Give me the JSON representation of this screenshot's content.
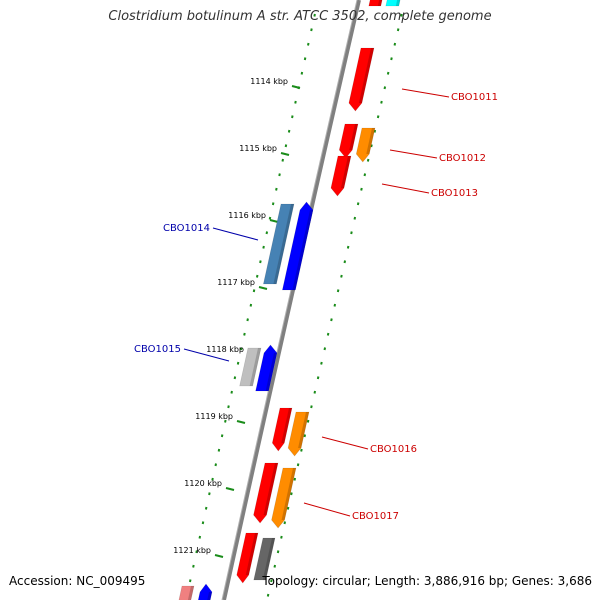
{
  "title": "Clostridium botulinum A str. ATCC 3502, complete genome",
  "accession": "Accession: NC_009495",
  "summary": "Topology: circular; Length: 3,886,916 bp; Genes: 3,686",
  "ticks": [
    "1114 kbp",
    "1115 kbp",
    "1116 kbp",
    "1117 kbp",
    "1118 kbp",
    "1119 kbp",
    "1120 kbp",
    "1121 kbp"
  ],
  "genes": [
    {
      "label": "CBO1011",
      "strand": "forward",
      "color": "#cc0000"
    },
    {
      "label": "CBO1012",
      "strand": "forward",
      "color": "#cc0000"
    },
    {
      "label": "CBO1013",
      "strand": "forward",
      "color": "#cc0000"
    },
    {
      "label": "CBO1014",
      "strand": "reverse",
      "color": "#0000aa"
    },
    {
      "label": "CBO1015",
      "strand": "reverse",
      "color": "#0000aa"
    },
    {
      "label": "CBO1016",
      "strand": "forward",
      "color": "#cc0000"
    },
    {
      "label": "CBO1017",
      "strand": "forward",
      "color": "#cc0000"
    }
  ],
  "colors": {
    "backbone": "#808080",
    "dots": "#1a8c1a",
    "cds_forward": "#ff0000",
    "cds_orange": "#ff8c00",
    "cds_blue": "#0000ff",
    "cds_steel": "#4682b4",
    "cds_gray": "#bfbfbf",
    "cds_dark": "#666666",
    "cds_cyan": "#00ffff",
    "cds_pink": "#f08080"
  }
}
